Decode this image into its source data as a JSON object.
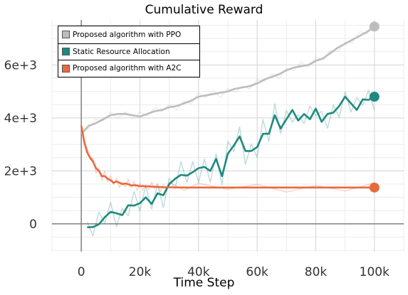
{
  "chart_data": {
    "type": "line",
    "title": "Cumulative Reward",
    "xlabel": "Time Step",
    "ylabel": "",
    "xlim": [
      -10000,
      110000
    ],
    "ylim": [
      -1050,
      7700
    ],
    "xticks": [
      0,
      20000,
      40000,
      60000,
      80000,
      100000
    ],
    "xtick_labels": [
      "0",
      "20k",
      "40k",
      "60k",
      "80k",
      "100k"
    ],
    "yticks": [
      0,
      2000,
      4000,
      6000
    ],
    "ytick_labels": [
      "0",
      "2e+3",
      "4e+3",
      "6e+3"
    ],
    "grid": true,
    "legend_position": "top-left",
    "series": [
      {
        "name": "Proposed algorithm with PPO",
        "color": "#bdbdbd",
        "x": [
          0,
          2500,
          5000,
          7500,
          10000,
          12500,
          15000,
          17500,
          20000,
          22500,
          25000,
          27500,
          30000,
          32500,
          35000,
          37500,
          40000,
          42500,
          45000,
          47500,
          50000,
          52500,
          55000,
          57500,
          60000,
          62500,
          65000,
          67500,
          70000,
          72500,
          75000,
          77500,
          80000,
          82500,
          85000,
          87500,
          90000,
          92500,
          95000,
          97500,
          100000
        ],
        "values": [
          3400,
          3700,
          3800,
          3950,
          4100,
          4150,
          4150,
          4100,
          4050,
          4150,
          4250,
          4300,
          4400,
          4450,
          4550,
          4650,
          4800,
          4850,
          4900,
          4950,
          5000,
          5100,
          5150,
          5200,
          5300,
          5450,
          5550,
          5650,
          5800,
          5900,
          5950,
          6000,
          6150,
          6250,
          6450,
          6650,
          6800,
          6950,
          7100,
          7250,
          7450
        ]
      },
      {
        "name": "Static Resource Allocation",
        "color": "#1e8a7e",
        "x": [
          2000,
          4000,
          6000,
          8000,
          10000,
          12000,
          14000,
          16000,
          18000,
          20000,
          22000,
          24000,
          26000,
          28000,
          30000,
          32000,
          34000,
          36000,
          38000,
          40000,
          42000,
          44000,
          46000,
          48000,
          50000,
          52000,
          54000,
          56000,
          58000,
          60000,
          62000,
          64000,
          66000,
          68000,
          70000,
          72000,
          74000,
          76000,
          78000,
          80000,
          82000,
          84000,
          86000,
          88000,
          90000,
          92000,
          94000,
          96000,
          98000,
          100000
        ],
        "values": [
          -130,
          -120,
          -20,
          250,
          450,
          400,
          330,
          700,
          690,
          780,
          1000,
          750,
          1150,
          1080,
          1500,
          1700,
          1850,
          1820,
          1950,
          2100,
          2150,
          2000,
          2450,
          1800,
          2650,
          2950,
          3300,
          2750,
          2750,
          2900,
          3400,
          3400,
          4100,
          3600,
          3950,
          4300,
          3900,
          4150,
          3950,
          4350,
          3850,
          4150,
          4200,
          4450,
          4800,
          4550,
          4300,
          4700,
          4680,
          4800
        ]
      },
      {
        "name": "Proposed algorithm with A2C",
        "color": "#e8693e",
        "x": [
          0,
          1000,
          2000,
          3000,
          4000,
          5000,
          6000,
          7000,
          8000,
          9000,
          10000,
          11000,
          12000,
          13000,
          14000,
          15000,
          16000,
          17000,
          18000,
          19000,
          20000,
          21000,
          22000,
          23000,
          24000,
          25000,
          26000,
          27000,
          28000,
          29000,
          30000,
          35000,
          40000,
          50000,
          60000,
          70000,
          80000,
          90000,
          100000
        ],
        "values": [
          3700,
          3100,
          2700,
          2500,
          2350,
          2100,
          2000,
          1800,
          1800,
          1700,
          1650,
          1550,
          1600,
          1550,
          1500,
          1520,
          1500,
          1450,
          1460,
          1450,
          1420,
          1430,
          1410,
          1420,
          1400,
          1400,
          1390,
          1390,
          1380,
          1380,
          1380,
          1370,
          1370,
          1370,
          1370,
          1370,
          1370,
          1370,
          1370
        ]
      }
    ]
  }
}
